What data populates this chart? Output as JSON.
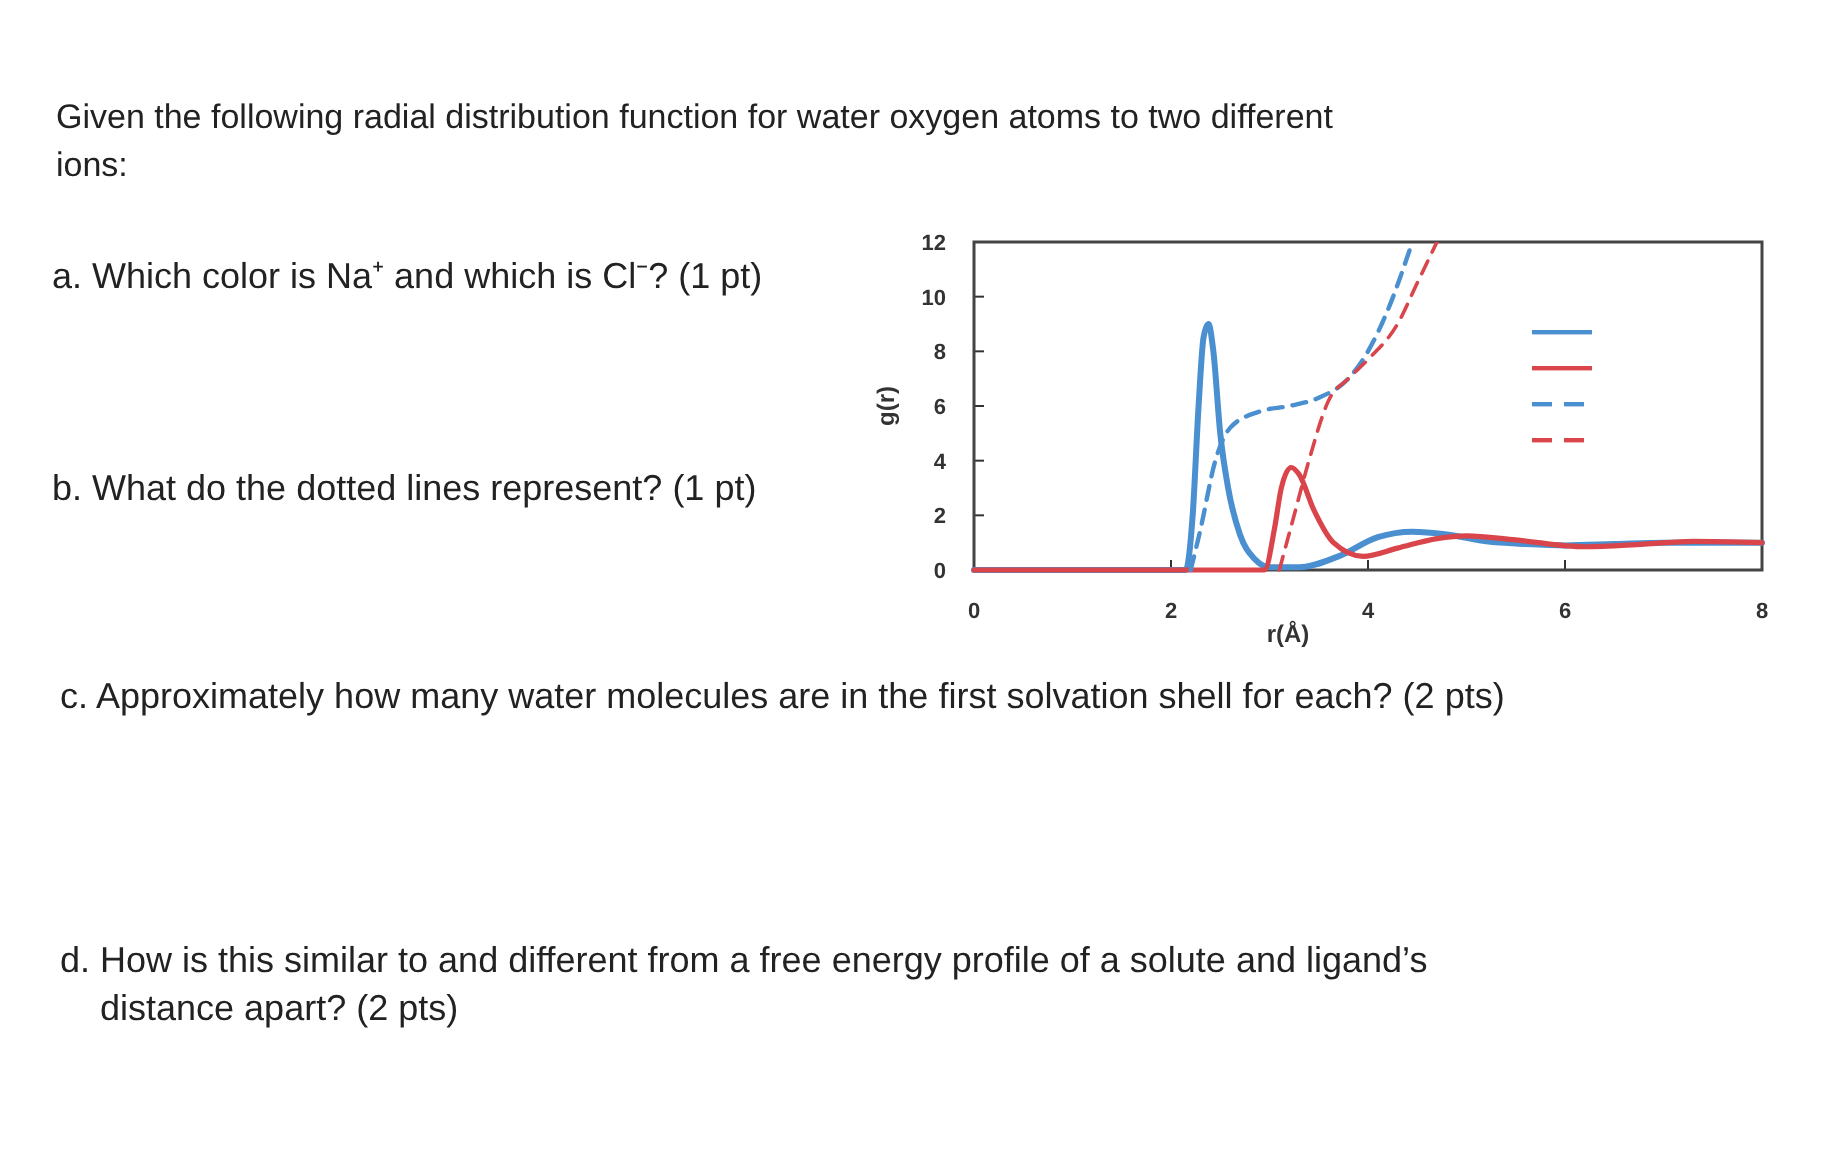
{
  "chart_data": {
    "type": "line",
    "title": "Given the following radial distribution function for water oxygen atoms to two different ions:",
    "xlabel": "r(Å)",
    "ylabel": "g(r)",
    "xlim": [
      0,
      8
    ],
    "ylim": [
      0,
      12
    ],
    "xticks": [
      0,
      2,
      4,
      6,
      8
    ],
    "yticks": [
      0,
      2,
      4,
      6,
      8,
      10,
      12
    ],
    "grid": false,
    "series": [
      {
        "color": "#4a90d0",
        "line_style": "solid",
        "x": [
          0,
          2.15,
          2.22,
          2.28,
          2.33,
          2.38,
          2.43,
          2.5,
          2.58,
          2.7,
          2.85,
          3.0,
          3.3,
          3.7,
          4.1,
          4.45,
          4.8,
          5.2,
          5.6,
          6.0,
          6.5,
          7,
          8
        ],
        "values": [
          0,
          0,
          2,
          6,
          8.5,
          9,
          8,
          5,
          3,
          1.3,
          0.4,
          0.1,
          0.1,
          0.5,
          1.2,
          1.4,
          1.3,
          1.05,
          0.95,
          0.9,
          0.95,
          1.0,
          1.0
        ]
      },
      {
        "color": "#d9454a",
        "line_style": "solid",
        "x": [
          0,
          2.95,
          3.05,
          3.12,
          3.22,
          3.3,
          3.45,
          3.65,
          3.95,
          4.3,
          4.7,
          5.0,
          5.5,
          6.2,
          6.8,
          7.3,
          8
        ],
        "values": [
          0,
          0,
          1.5,
          3,
          3.75,
          3.5,
          2.2,
          1.0,
          0.5,
          0.8,
          1.15,
          1.25,
          1.1,
          0.85,
          0.95,
          1.05,
          1.0
        ]
      },
      {
        "color": "#4a90d0",
        "line_style": "dashed",
        "x": [
          2.2,
          2.3,
          2.45,
          2.6,
          2.9,
          3.2,
          3.5,
          3.8,
          4.0,
          4.2,
          4.45
        ],
        "values": [
          0,
          1.5,
          4,
          5.2,
          5.8,
          6,
          6.3,
          7,
          8,
          9.5,
          12
        ]
      },
      {
        "color": "#d9454a",
        "line_style": "dashed",
        "x": [
          3.1,
          3.25,
          3.4,
          3.6,
          3.8,
          4.0,
          4.3,
          4.5,
          4.7
        ],
        "values": [
          0,
          2,
          4,
          6.2,
          7,
          7.7,
          9,
          10.5,
          12
        ]
      }
    ],
    "annotations": [
      "a. Which color is Na⁺ and which is Cl⁻? (1 pt)",
      "b. What do the dotted lines represent? (1 pt)",
      "c. Approximately how many water molecules are in the first solvation shell for each? (2 pts)",
      "d. How is this similar to and different from a free energy profile of a solute and ligand’s distance apart? (2 pts)"
    ]
  }
}
